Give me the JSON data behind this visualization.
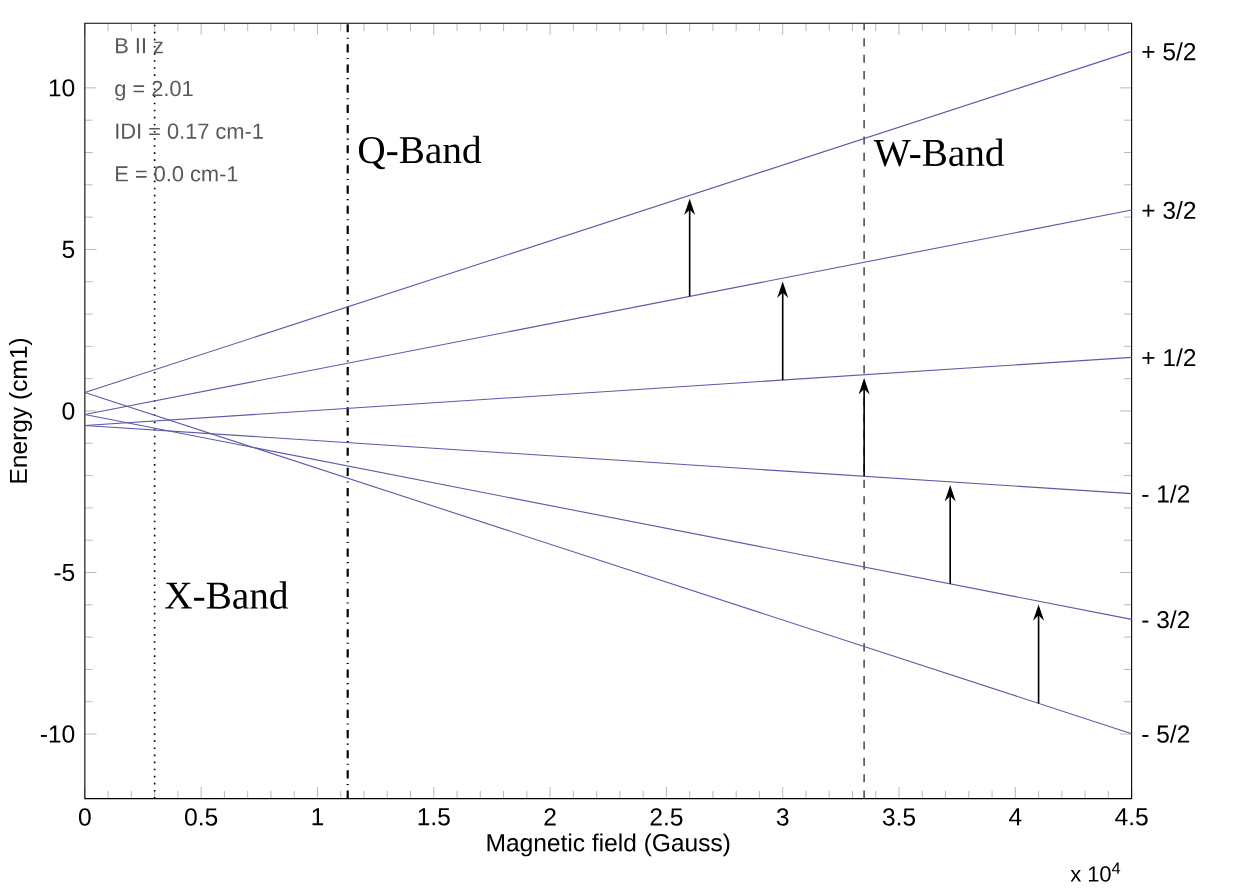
{
  "chart_data": {
    "type": "line",
    "xlabel": "Magnetic field (Gauss)",
    "ylabel": "Energy (cm1)",
    "xlim": [
      0,
      4.5
    ],
    "ylim": [
      -12,
      12
    ],
    "xticks": [
      0,
      0.5,
      1,
      1.5,
      2,
      2.5,
      3,
      3.5,
      4,
      4.5
    ],
    "yticks": [
      -10,
      -5,
      0,
      5,
      10
    ],
    "grid": false,
    "legend": false,
    "marker": "none",
    "line_style": "solid",
    "x": [
      0,
      4.5
    ],
    "series": [
      {
        "name": "+ 5/2",
        "color": "#5a5aa8",
        "values": [
          0.57,
          11.13
        ]
      },
      {
        "name": "+ 3/2",
        "color": "#5a5aa8",
        "values": [
          -0.11,
          6.22
        ]
      },
      {
        "name": "+ 1/2",
        "color": "#5a5aa8",
        "values": [
          -0.45,
          1.66
        ]
      },
      {
        "name": "- 1/2",
        "color": "#5a5aa8",
        "values": [
          -0.45,
          -2.56
        ]
      },
      {
        "name": "- 3/2",
        "color": "#5a5aa8",
        "values": [
          -0.11,
          -6.45
        ]
      },
      {
        "name": "- 5/2",
        "color": "#5a5aa8",
        "values": [
          0.57,
          -9.99
        ]
      }
    ],
    "ref_lines": [
      {
        "axis": "x",
        "value": 0.3,
        "label": "X-Band",
        "color": "#000000",
        "line_style": "dotted"
      },
      {
        "axis": "x",
        "value": 1.13,
        "label": "Q-Band",
        "color": "#000000",
        "line_style": "dashdot"
      },
      {
        "axis": "x",
        "value": 3.35,
        "label": "W-Band",
        "color": "#555555",
        "line_style": "dashed"
      }
    ],
    "annotations": [
      "B II z",
      "g = 2.01",
      "IDI = 0.17 cm-1",
      "E = 0.0 cm-1",
      "x 10$^{4}$"
    ]
  }
}
